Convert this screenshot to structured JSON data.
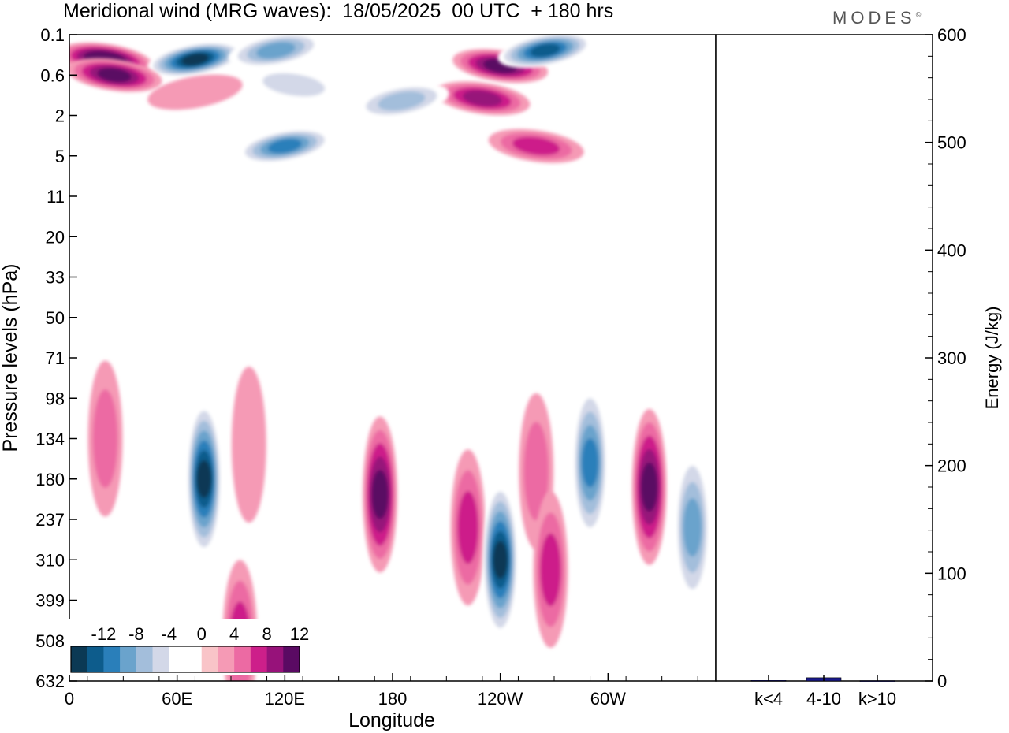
{
  "header": {
    "title": "Meridional wind (MRG waves):  18/05/2025  00 UTC  + 180 hrs",
    "brand": "MODES",
    "brand_mark": "©"
  },
  "chart_data": [
    {
      "type": "heatmap",
      "title": "Meridional wind (MRG waves):  18/05/2025  00 UTC  + 180 hrs",
      "xlabel": "Longitude",
      "ylabel": "Pressure levels (hPa)",
      "x_ticks": [
        "0",
        "60E",
        "120E",
        "180",
        "120W",
        "60W"
      ],
      "y_ticks": [
        "0.1",
        "0.6",
        "2",
        "5",
        "11",
        "20",
        "33",
        "50",
        "71",
        "98",
        "134",
        "180",
        "237",
        "310",
        "399",
        "508",
        "632"
      ],
      "colorbar": {
        "labels": [
          "-12",
          "-8",
          "-4",
          "0",
          "4",
          "8",
          "12"
        ],
        "colors": [
          "#0b3954",
          "#0d5c8c",
          "#2a7fba",
          "#6aa3cc",
          "#a3bedb",
          "#d3d8e8",
          "#ffffff",
          "#ffffff",
          "#f9c4c8",
          "#f59ab5",
          "#ec6aa3",
          "#cd1f8a",
          "#97127a",
          "#5a0a63"
        ]
      },
      "features": [
        {
          "lon": 20,
          "level": "0.3",
          "value": 14
        },
        {
          "lon": 70,
          "level": "0.3",
          "value": -14
        },
        {
          "lon": 25,
          "level": "0.6",
          "value": 12
        },
        {
          "lon": 115,
          "level": "0.2",
          "value": -8
        },
        {
          "lon": 125,
          "level": "0.8",
          "value": -5
        },
        {
          "lon": 70,
          "level": "1",
          "value": 4
        },
        {
          "lon": 125,
          "level": "1.2",
          "value": 3
        },
        {
          "lon": 120,
          "level": "4",
          "value": -10
        },
        {
          "lon": 240,
          "level": "0.4",
          "value": 12
        },
        {
          "lon": 265,
          "level": "0.2",
          "value": -12
        },
        {
          "lon": 230,
          "level": "1.2",
          "value": 10
        },
        {
          "lon": 185,
          "level": "1.3",
          "value": -6
        },
        {
          "lon": 260,
          "level": "4",
          "value": 9
        },
        {
          "lon": 20,
          "level": "134",
          "value": 6
        },
        {
          "lon": 75,
          "level": "180",
          "value": -14
        },
        {
          "lon": 100,
          "level": "140",
          "value": 5
        },
        {
          "lon": 95,
          "level": "500",
          "value": 8
        },
        {
          "lon": 173,
          "level": "200",
          "value": 12
        },
        {
          "lon": 222,
          "level": "250",
          "value": 8
        },
        {
          "lon": 240,
          "level": "310",
          "value": -14
        },
        {
          "lon": 260,
          "level": "170",
          "value": 7
        },
        {
          "lon": 268,
          "level": "330",
          "value": 9
        },
        {
          "lon": 290,
          "level": "160",
          "value": -10
        },
        {
          "lon": 323,
          "level": "190",
          "value": 12
        },
        {
          "lon": 347,
          "level": "250",
          "value": -8
        }
      ]
    },
    {
      "type": "bar",
      "ylabel": "Energy (J/kg)",
      "categories": [
        "k<4",
        "4-10",
        "k>10"
      ],
      "values": [
        0.5,
        3,
        0.3
      ],
      "ylim": [
        0,
        600
      ],
      "y_ticks": [
        "0",
        "100",
        "200",
        "300",
        "400",
        "500",
        "600"
      ],
      "color": "#1a1a8c"
    }
  ]
}
